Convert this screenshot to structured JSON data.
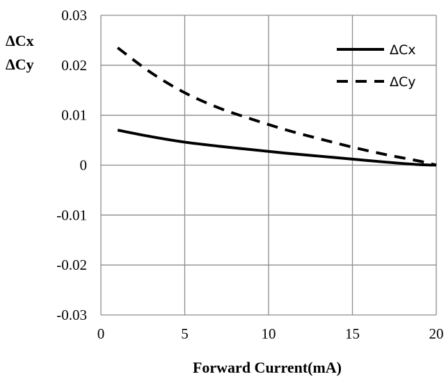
{
  "chart_data": {
    "type": "line",
    "title": "",
    "xlabel": "Forward Current(mA)",
    "ylabel_lines": [
      "ΔCx",
      "ΔCy"
    ],
    "xlim": [
      0,
      20
    ],
    "ylim": [
      -0.03,
      0.03
    ],
    "x_ticks": [
      0,
      5,
      10,
      15,
      20
    ],
    "x_tick_labels": [
      "0",
      "5",
      "10",
      "15",
      "20"
    ],
    "y_ticks": [
      0.03,
      0.02,
      0.01,
      0,
      -0.01,
      -0.02,
      -0.03
    ],
    "y_tick_labels": [
      "0.03",
      "0.02",
      "0.01",
      "0",
      "-0.01",
      "-0.02",
      "-0.03"
    ],
    "grid": true,
    "legend_position": "top-right",
    "series": [
      {
        "name": "ΔCx",
        "style": "solid",
        "color": "#000000",
        "x": [
          1,
          3,
          5,
          7,
          9,
          11,
          13,
          15,
          17,
          19,
          20
        ],
        "y": [
          0.007,
          0.0057,
          0.0046,
          0.0038,
          0.0031,
          0.0024,
          0.0018,
          0.0012,
          0.0006,
          0.0001,
          0.0
        ]
      },
      {
        "name": "ΔCy",
        "style": "dashed",
        "color": "#000000",
        "x": [
          1,
          3,
          5,
          7,
          9,
          11,
          13,
          15,
          17,
          19,
          20
        ],
        "y": [
          0.0235,
          0.0185,
          0.0145,
          0.0115,
          0.0092,
          0.0071,
          0.0053,
          0.0036,
          0.0021,
          0.0008,
          0.0
        ]
      }
    ]
  }
}
